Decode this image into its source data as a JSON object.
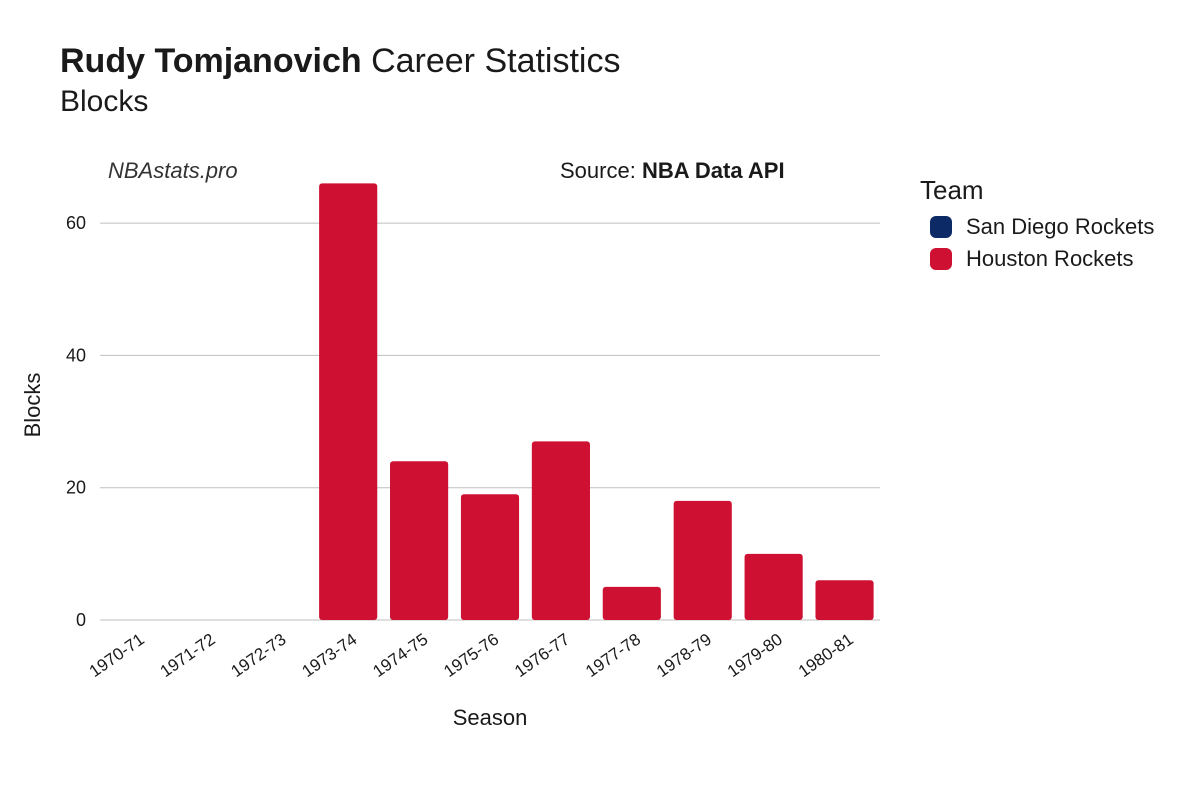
{
  "title": {
    "player_name": "Rudy Tomjanovich",
    "suffix": " Career Statistics",
    "subtitle": "Blocks"
  },
  "watermark": "NBAstats.pro",
  "source": {
    "prefix": "Source: ",
    "name": "NBA Data API"
  },
  "chart": {
    "type": "bar",
    "xlabel": "Season",
    "ylabel": "Blocks",
    "ylim": [
      0,
      65
    ],
    "yticks": [
      0,
      20,
      40,
      60
    ],
    "categories": [
      "1970-71",
      "1971-72",
      "1972-73",
      "1973-74",
      "1974-75",
      "1975-76",
      "1976-77",
      "1977-78",
      "1978-79",
      "1979-80",
      "1980-81"
    ],
    "values": [
      0,
      0,
      0,
      66,
      24,
      19,
      27,
      5,
      18,
      10,
      6
    ],
    "team_index": [
      0,
      1,
      1,
      1,
      1,
      1,
      1,
      1,
      1,
      1,
      1
    ],
    "bar_width": 0.82,
    "background_color": "#ffffff",
    "grid_color": "#bfbfbf",
    "tick_font_size": 18,
    "label_font_size": 22,
    "title_font_size": 34
  },
  "legend": {
    "title": "Team",
    "items": [
      {
        "label": "San Diego Rockets",
        "color": "#0c2b66"
      },
      {
        "label": "Houston Rockets",
        "color": "#ce1032"
      }
    ]
  }
}
